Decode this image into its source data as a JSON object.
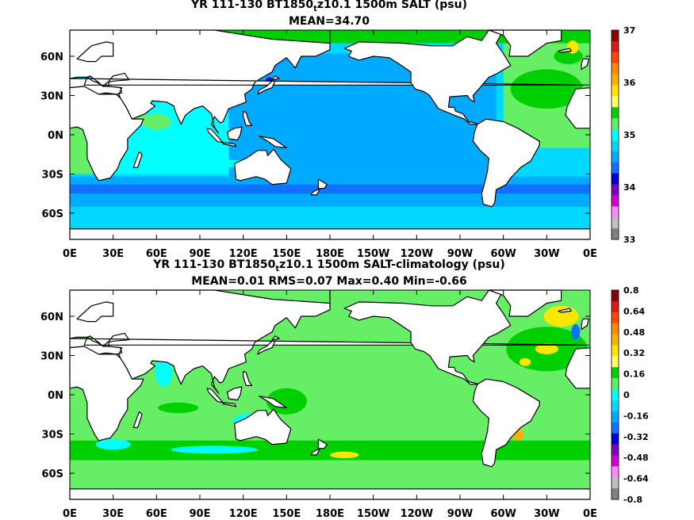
{
  "chart_data": [
    {
      "type": "heatmap",
      "title_prefix": "YR 111-130 BT1850",
      "title_sub": "t",
      "title_suffix": "z10.1 1500m SALT (psu)",
      "subtitle": "MEAN=34.70",
      "xticks": [
        "0E",
        "30E",
        "60E",
        "90E",
        "120E",
        "150E",
        "180E",
        "150W",
        "120W",
        "90W",
        "60W",
        "30W",
        "0E"
      ],
      "yticks": [
        "60N",
        "30N",
        "0N",
        "30S",
        "60S"
      ],
      "colorbar": {
        "labels": [
          "37",
          "36",
          "35",
          "34",
          "33"
        ],
        "colors": [
          "#8b0000",
          "#d81b1b",
          "#ff4500",
          "#ff8c00",
          "#ffb300",
          "#ffe600",
          "#ffff66",
          "#00d000",
          "#66ee66",
          "#00ffff",
          "#00d8ff",
          "#00aaff",
          "#1070ff",
          "#0000d0",
          "#8000c0",
          "#d000d0",
          "#ff88ff",
          "#c0c0c0",
          "#808080"
        ]
      },
      "mean": 34.7
    },
    {
      "type": "heatmap",
      "title_prefix": "YR 111-130 BT1850",
      "title_sub": "t",
      "title_suffix": "z10.1 1500m SALT-climatology (psu)",
      "subtitle": "MEAN=0.01   RMS=0.07   Max=0.40   Min=-0.66",
      "xticks": [
        "0E",
        "30E",
        "60E",
        "90E",
        "120E",
        "150E",
        "180E",
        "150W",
        "120W",
        "90W",
        "60W",
        "30W",
        "0E"
      ],
      "yticks": [
        "60N",
        "30N",
        "0N",
        "30S",
        "60S"
      ],
      "colorbar": {
        "labels": [
          "0.8",
          "0.64",
          "0.48",
          "0.32",
          "0.16",
          "0",
          "-0.16",
          "-0.32",
          "-0.48",
          "-0.64",
          "-0.8"
        ],
        "colors": [
          "#8b0000",
          "#d81b1b",
          "#ff4500",
          "#ff8c00",
          "#ffb300",
          "#ffe600",
          "#ffff66",
          "#00d000",
          "#66ee66",
          "#00ffff",
          "#00d8ff",
          "#00aaff",
          "#1070ff",
          "#0000d0",
          "#8000c0",
          "#d000d0",
          "#ff88ff",
          "#c0c0c0",
          "#808080"
        ]
      },
      "mean": 0.01,
      "rms": 0.07,
      "max": 0.4,
      "min": -0.66
    }
  ]
}
